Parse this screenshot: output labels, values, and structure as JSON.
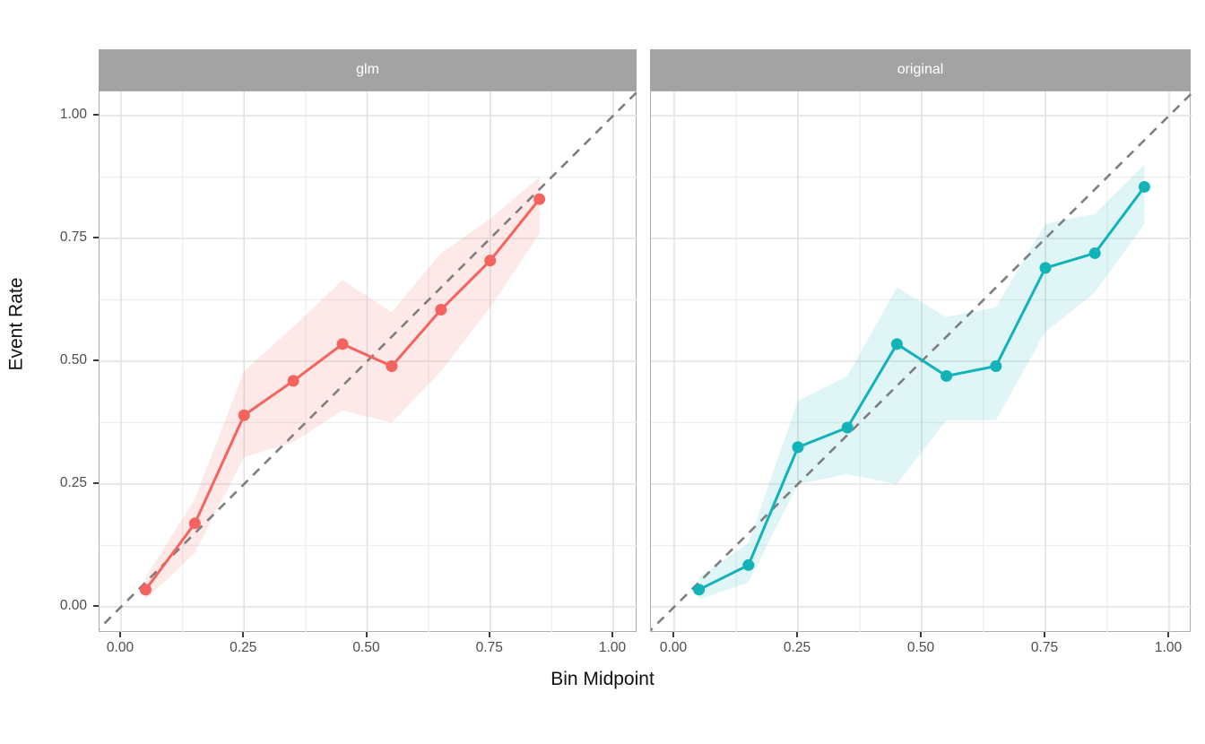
{
  "figure": {
    "x_axis_title": "Bin Midpoint",
    "y_axis_title": "Event Rate",
    "x_tick_labels": [
      "0.00",
      "0.25",
      "0.50",
      "0.75",
      "1.00"
    ],
    "y_tick_labels": [
      "0.00",
      "0.25",
      "0.50",
      "0.75",
      "1.00"
    ]
  },
  "colors": {
    "glm_line": "#f4635e",
    "glm_ribbon": "rgba(244,99,94,0.14)",
    "original_line": "#12b2b9",
    "original_ribbon": "rgba(18,178,185,0.13)",
    "reference_line": "#7e7e7e",
    "strip_background": "#a3a3a3",
    "strip_text": "#ffffff",
    "grid_major": "#e2e2e2",
    "grid_minor": "#f0f0f0",
    "panel_border": "#adadad",
    "tick_text": "#4d4d4d",
    "axis_title_text": "#111111"
  },
  "chart_data": [
    {
      "type": "line",
      "facet": "glm",
      "xlabel": "Bin Midpoint",
      "ylabel": "Event Rate",
      "xlim": [
        0,
        1
      ],
      "ylim": [
        0,
        1
      ],
      "x_breaks": [
        0,
        0.25,
        0.5,
        0.75,
        1
      ],
      "y_breaks": [
        0,
        0.25,
        0.5,
        0.75,
        1
      ],
      "minor_breaks": [
        0.125,
        0.375,
        0.625,
        0.875
      ],
      "grid": "major+minor",
      "reference_line": "dashed identity line y = x",
      "x": [
        0.05,
        0.15,
        0.25,
        0.35,
        0.45,
        0.55,
        0.65,
        0.75,
        0.85
      ],
      "y": [
        0.035,
        0.17,
        0.39,
        0.46,
        0.535,
        0.49,
        0.605,
        0.705,
        0.83
      ],
      "ci_lower": [
        0.015,
        0.11,
        0.305,
        0.335,
        0.4,
        0.375,
        0.48,
        0.61,
        0.76
      ],
      "ci_upper": [
        0.06,
        0.22,
        0.48,
        0.57,
        0.665,
        0.6,
        0.72,
        0.79,
        0.875
      ]
    },
    {
      "type": "line",
      "facet": "original",
      "xlabel": "Bin Midpoint",
      "ylabel": "Event Rate",
      "xlim": [
        0,
        1
      ],
      "ylim": [
        0,
        1
      ],
      "x_breaks": [
        0,
        0.25,
        0.5,
        0.75,
        1
      ],
      "y_breaks": [
        0,
        0.25,
        0.5,
        0.75,
        1
      ],
      "minor_breaks": [
        0.125,
        0.375,
        0.625,
        0.875
      ],
      "grid": "major+minor",
      "reference_line": "dashed identity line y = x",
      "x": [
        0.05,
        0.15,
        0.25,
        0.35,
        0.45,
        0.55,
        0.65,
        0.75,
        0.85,
        0.95
      ],
      "y": [
        0.035,
        0.085,
        0.325,
        0.365,
        0.535,
        0.47,
        0.49,
        0.69,
        0.72,
        0.855
      ],
      "ci_lower": [
        0.015,
        0.05,
        0.25,
        0.27,
        0.25,
        0.38,
        0.38,
        0.56,
        0.64,
        0.78
      ],
      "ci_upper": [
        0.06,
        0.13,
        0.42,
        0.47,
        0.65,
        0.59,
        0.61,
        0.78,
        0.8,
        0.9
      ]
    }
  ]
}
